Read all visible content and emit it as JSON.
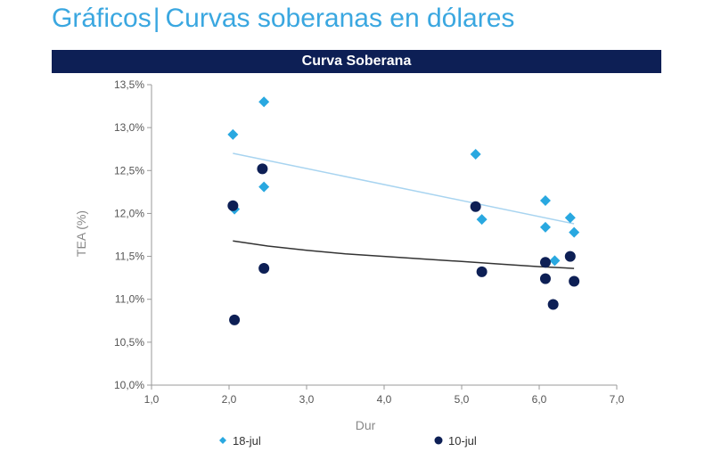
{
  "header": {
    "section": "Gráficos",
    "separator": "|",
    "subtitle": "Curvas soberanas en dólares"
  },
  "colors": {
    "banner": "#0d1f55",
    "heading": "#3aa7e0",
    "series_18jul": "#29a8e0",
    "series_10jul": "#0d1f55",
    "trend_18jul": "#a8d4f0",
    "trend_10jul": "#333333"
  },
  "chart_data": {
    "type": "scatter",
    "title": "Curva Soberana",
    "xlabel": "Dur",
    "ylabel": "TEA (%)",
    "xlim": [
      1.0,
      7.0
    ],
    "ylim": [
      10.0,
      13.5
    ],
    "x_ticks": [
      "1,0",
      "2,0",
      "3,0",
      "4,0",
      "5,0",
      "6,0",
      "7,0"
    ],
    "y_ticks": [
      "10,0%",
      "10,5%",
      "11,0%",
      "11,5%",
      "12,0%",
      "12,5%",
      "13,0%",
      "13,5%"
    ],
    "grid": false,
    "legend_position": "bottom",
    "series": [
      {
        "name": "18-jul",
        "marker": "diamond",
        "points": [
          [
            2.05,
            12.92
          ],
          [
            2.07,
            12.05
          ],
          [
            2.45,
            13.3
          ],
          [
            2.45,
            12.31
          ],
          [
            5.18,
            12.69
          ],
          [
            5.26,
            11.93
          ],
          [
            6.08,
            12.15
          ],
          [
            6.08,
            11.84
          ],
          [
            6.2,
            11.45
          ],
          [
            6.4,
            11.95
          ],
          [
            6.45,
            11.78
          ]
        ],
        "trend": [
          [
            2.05,
            12.7
          ],
          [
            6.45,
            11.88
          ]
        ]
      },
      {
        "name": "10-jul",
        "marker": "circle",
        "points": [
          [
            2.05,
            12.09
          ],
          [
            2.07,
            10.76
          ],
          [
            2.43,
            12.52
          ],
          [
            2.45,
            11.36
          ],
          [
            5.18,
            12.08
          ],
          [
            5.26,
            11.32
          ],
          [
            6.08,
            11.43
          ],
          [
            6.08,
            11.24
          ],
          [
            6.18,
            10.94
          ],
          [
            6.4,
            11.5
          ],
          [
            6.45,
            11.21
          ]
        ],
        "trend": [
          [
            2.05,
            11.68
          ],
          [
            2.5,
            11.62
          ],
          [
            3.0,
            11.57
          ],
          [
            3.5,
            11.53
          ],
          [
            4.0,
            11.5
          ],
          [
            4.5,
            11.47
          ],
          [
            5.0,
            11.44
          ],
          [
            5.5,
            11.41
          ],
          [
            6.0,
            11.38
          ],
          [
            6.45,
            11.36
          ]
        ]
      }
    ]
  }
}
